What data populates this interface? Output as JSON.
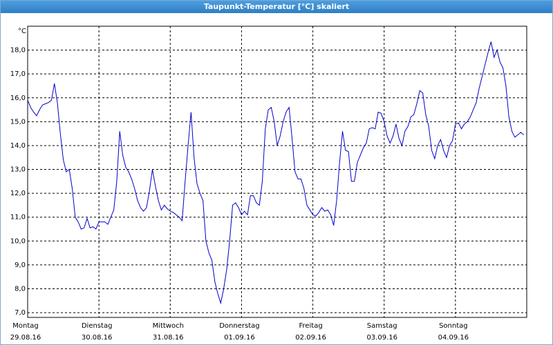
{
  "chart_data": {
    "type": "line",
    "title": "Taupunkt-Temperatur [°C] skaliert",
    "y_unit": "°C",
    "xlim": [
      0,
      168
    ],
    "ylim": [
      6.8,
      19.0
    ],
    "xticks": [
      {
        "value": 0,
        "label": "Montag",
        "date": "29.08.16"
      },
      {
        "value": 24,
        "label": "Dienstag",
        "date": "30.08.16"
      },
      {
        "value": 48,
        "label": "Mittwoch",
        "date": "31.08.16"
      },
      {
        "value": 72,
        "label": "Donnerstag",
        "date": "01.09.16"
      },
      {
        "value": 96,
        "label": "Freitag",
        "date": "02.09.16"
      },
      {
        "value": 120,
        "label": "Samstag",
        "date": "03.09.16"
      },
      {
        "value": 144,
        "label": "Sonntag",
        "date": "04.09.16"
      }
    ],
    "yticks": [
      {
        "value": 7,
        "label": "7,0"
      },
      {
        "value": 8,
        "label": "8,0"
      },
      {
        "value": 9,
        "label": "9,0"
      },
      {
        "value": 10,
        "label": "10,0"
      },
      {
        "value": 11,
        "label": "11,0"
      },
      {
        "value": 12,
        "label": "12,0"
      },
      {
        "value": 13,
        "label": "13,0"
      },
      {
        "value": 14,
        "label": "14,0"
      },
      {
        "value": 15,
        "label": "15,0"
      },
      {
        "value": 16,
        "label": "16,0"
      },
      {
        "value": 17,
        "label": "17,0"
      },
      {
        "value": 18,
        "label": "18,0"
      }
    ],
    "grid": true,
    "x": [
      0,
      1,
      2,
      3,
      4,
      5,
      6,
      7,
      8,
      9,
      10,
      11,
      12,
      13,
      14,
      15,
      16,
      17,
      18,
      19,
      20,
      21,
      22,
      23,
      24,
      25,
      26,
      27,
      28,
      29,
      30,
      31,
      32,
      33,
      34,
      35,
      36,
      37,
      38,
      39,
      40,
      41,
      42,
      43,
      44,
      45,
      46,
      47,
      48,
      49,
      50,
      51,
      52,
      53,
      54,
      55,
      56,
      57,
      58,
      59,
      60,
      61,
      62,
      63,
      64,
      65,
      66,
      67,
      68,
      69,
      70,
      71,
      72,
      73,
      74,
      75,
      76,
      77,
      78,
      79,
      80,
      81,
      82,
      83,
      84,
      85,
      86,
      87,
      88,
      89,
      90,
      91,
      92,
      93,
      94,
      95,
      96,
      97,
      98,
      99,
      100,
      101,
      102,
      103,
      104,
      105,
      106,
      107,
      108,
      109,
      110,
      111,
      112,
      113,
      114,
      115,
      116,
      117,
      118,
      119,
      120,
      121,
      122,
      123,
      124,
      125,
      126,
      127,
      128,
      129,
      130,
      131,
      132,
      133,
      134,
      135,
      136,
      137,
      138,
      139,
      140,
      141,
      142,
      143,
      144,
      145,
      146,
      147,
      148,
      149,
      150,
      151,
      152,
      153,
      154,
      155,
      156,
      157,
      158,
      159,
      160,
      161,
      162,
      163,
      164,
      165,
      166,
      167
    ],
    "series": [
      {
        "color": "#0000c8",
        "values": [
          15.9,
          15.6,
          15.4,
          15.25,
          15.5,
          15.7,
          15.75,
          15.8,
          15.9,
          16.6,
          15.8,
          14.5,
          13.4,
          12.9,
          13.0,
          12.2,
          11.0,
          10.8,
          10.5,
          10.55,
          10.95,
          10.55,
          10.6,
          10.5,
          10.8,
          10.8,
          10.8,
          10.7,
          11.0,
          11.3,
          12.5,
          14.6,
          13.6,
          13.1,
          12.9,
          12.6,
          12.2,
          11.7,
          11.4,
          11.25,
          11.4,
          12.1,
          13.0,
          12.3,
          11.7,
          11.3,
          11.5,
          11.35,
          11.25,
          11.2,
          11.1,
          11.0,
          10.85,
          12.5,
          14.0,
          15.4,
          13.5,
          12.4,
          12.0,
          11.7,
          10.0,
          9.5,
          9.2,
          8.3,
          7.8,
          7.4,
          8.0,
          8.8,
          10.0,
          11.5,
          11.6,
          11.4,
          11.1,
          11.25,
          11.1,
          11.9,
          11.9,
          11.6,
          11.5,
          12.5,
          14.7,
          15.5,
          15.6,
          15.0,
          14.0,
          14.4,
          15.0,
          15.4,
          15.6,
          14.3,
          12.9,
          12.6,
          12.6,
          12.2,
          11.5,
          11.3,
          11.1,
          11.05,
          11.2,
          11.4,
          11.25,
          11.3,
          11.1,
          10.65,
          11.7,
          13.3,
          14.6,
          13.8,
          13.75,
          12.5,
          12.5,
          13.3,
          13.6,
          13.9,
          14.1,
          14.7,
          14.75,
          14.7,
          15.4,
          15.35,
          15.0,
          14.4,
          14.1,
          14.4,
          14.9,
          14.3,
          14.0,
          14.6,
          14.8,
          15.2,
          15.3,
          15.75,
          16.3,
          16.2,
          15.3,
          14.8,
          13.8,
          13.45,
          14.0,
          14.25,
          13.8,
          13.5,
          14.0,
          14.2,
          14.9,
          14.95,
          14.7,
          14.9,
          15.0,
          15.2,
          15.5,
          15.8,
          16.4,
          16.9,
          17.4,
          17.9,
          18.35,
          17.7,
          18.0,
          17.5,
          17.25,
          16.5,
          15.2,
          14.6,
          14.35,
          14.45,
          14.55,
          14.45
        ]
      }
    ]
  }
}
